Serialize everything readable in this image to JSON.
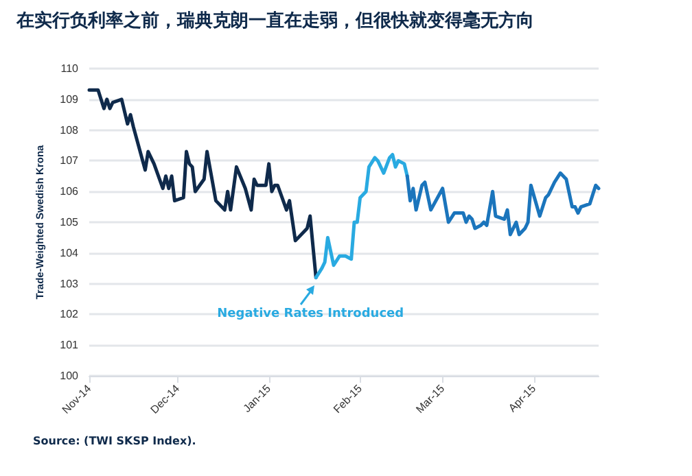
{
  "chart_data": {
    "type": "line",
    "title": "在实行负利率之前，瑞典克朗一直在走弱，但很快就变得毫无方向",
    "ylabel": "Trade-Weighted Swedish Krona",
    "xlim": [
      "2014-11-01",
      "2015-04-23"
    ],
    "xticks": [
      {
        "value": "2014-11-01",
        "label": "Nov-14"
      },
      {
        "value": "2014-12-01",
        "label": "Dec-14"
      },
      {
        "value": "2015-01-01",
        "label": "Jan-15"
      },
      {
        "value": "2015-02-01",
        "label": "Feb-15"
      },
      {
        "value": "2015-03-01",
        "label": "Mar-15"
      },
      {
        "value": "2015-04-01",
        "label": "Apr-15"
      }
    ],
    "ylim": [
      100,
      110
    ],
    "yticks": [
      100,
      101,
      102,
      103,
      104,
      105,
      106,
      107,
      108,
      109,
      110
    ],
    "grid": "y",
    "marker": "none",
    "line_style": "solid",
    "series": [
      {
        "color": "#0f2a4b",
        "x": [
          "2014-11-01",
          "2014-11-04",
          "2014-11-06",
          "2014-11-07",
          "2014-11-08",
          "2014-11-09",
          "2014-11-12",
          "2014-11-14",
          "2014-11-15",
          "2014-11-16",
          "2014-11-20",
          "2014-11-21",
          "2014-11-23",
          "2014-11-26",
          "2014-11-27",
          "2014-11-28",
          "2014-11-29",
          "2014-11-30",
          "2014-12-03",
          "2014-12-04",
          "2014-12-05",
          "2014-12-06",
          "2014-12-07",
          "2014-12-10",
          "2014-12-11",
          "2014-12-14",
          "2014-12-17",
          "2014-12-18",
          "2014-12-19",
          "2014-12-21",
          "2014-12-24",
          "2014-12-26",
          "2014-12-27",
          "2014-12-28",
          "2014-12-31",
          "2015-01-01",
          "2015-01-02",
          "2015-01-03",
          "2015-01-04",
          "2015-01-07",
          "2015-01-08",
          "2015-01-10",
          "2015-01-14",
          "2015-01-15",
          "2015-01-17"
        ],
        "values": [
          109.3,
          109.3,
          108.7,
          109.0,
          108.7,
          108.9,
          109.0,
          108.2,
          108.5,
          108.1,
          106.7,
          107.3,
          106.9,
          106.1,
          106.5,
          106.1,
          106.5,
          105.7,
          105.8,
          107.3,
          106.9,
          106.8,
          106.0,
          106.4,
          107.3,
          105.7,
          105.4,
          106.0,
          105.4,
          106.8,
          106.1,
          105.4,
          106.4,
          106.2,
          106.2,
          106.9,
          106.0,
          106.2,
          106.2,
          105.4,
          105.7,
          104.4,
          104.8,
          105.2,
          103.2
        ]
      },
      {
        "color": "#29aae1",
        "x": [
          "2015-01-17",
          "2015-01-19",
          "2015-01-20",
          "2015-01-21",
          "2015-01-23",
          "2015-01-25",
          "2015-01-27",
          "2015-01-29",
          "2015-01-30",
          "2015-01-31",
          "2015-02-01",
          "2015-02-03",
          "2015-02-04",
          "2015-02-06",
          "2015-02-07",
          "2015-02-09",
          "2015-02-11",
          "2015-02-12",
          "2015-02-13",
          "2015-02-14",
          "2015-02-16",
          "2015-02-17"
        ],
        "values": [
          103.2,
          103.5,
          103.7,
          104.5,
          103.6,
          103.9,
          103.9,
          103.8,
          105.0,
          105.0,
          105.8,
          106.0,
          106.8,
          107.1,
          107.0,
          106.6,
          107.1,
          107.2,
          106.8,
          107.0,
          106.9,
          106.5
        ]
      },
      {
        "color": "#1b75bc",
        "x": [
          "2015-02-17",
          "2015-02-18",
          "2015-02-19",
          "2015-02-20",
          "2015-02-22",
          "2015-02-23",
          "2015-02-25",
          "2015-03-01",
          "2015-03-03",
          "2015-03-05",
          "2015-03-08",
          "2015-03-09",
          "2015-03-10",
          "2015-03-11",
          "2015-03-12",
          "2015-03-14",
          "2015-03-15",
          "2015-03-16",
          "2015-03-18",
          "2015-03-19",
          "2015-03-22",
          "2015-03-23",
          "2015-03-24",
          "2015-03-26",
          "2015-03-27",
          "2015-03-29",
          "2015-03-30",
          "2015-03-31",
          "2015-04-03",
          "2015-04-05",
          "2015-04-06",
          "2015-04-08",
          "2015-04-10",
          "2015-04-12",
          "2015-04-14",
          "2015-04-15",
          "2015-04-16",
          "2015-04-17",
          "2015-04-20",
          "2015-04-22",
          "2015-04-23"
        ],
        "values": [
          106.5,
          105.7,
          106.1,
          105.4,
          106.2,
          106.3,
          105.4,
          106.1,
          105.0,
          105.3,
          105.3,
          105.0,
          105.2,
          105.1,
          104.8,
          104.9,
          105.0,
          104.9,
          106.0,
          105.2,
          105.1,
          105.4,
          104.6,
          105.0,
          104.6,
          104.8,
          105.0,
          106.2,
          105.2,
          105.8,
          105.9,
          106.3,
          106.6,
          106.4,
          105.5,
          105.5,
          105.3,
          105.5,
          105.6,
          106.2,
          106.1
        ]
      }
    ],
    "annotations": [
      {
        "text": "Negative Rates Introduced",
        "x": "2015-01-17",
        "y": 103.2
      },
      "Source: (TWI SKSP Index)."
    ]
  }
}
